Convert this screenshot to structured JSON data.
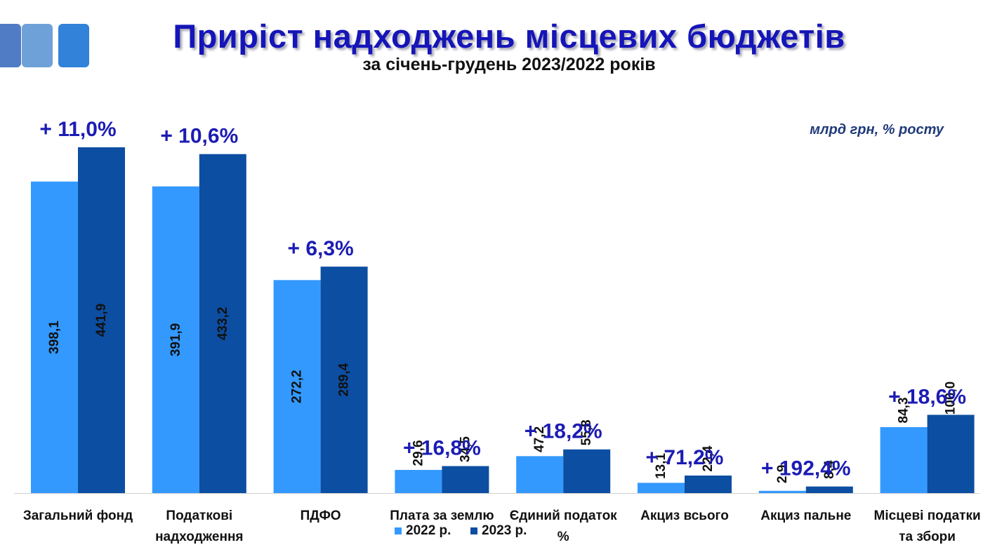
{
  "header": {
    "title": "Приріст надходжень місцевих бюджетів",
    "subtitle": "за січень-грудень 2023/2022 років",
    "unit": "млрд грн, % росту"
  },
  "colors": {
    "series_2022": "#3399ff",
    "series_2023": "#0c4ea2",
    "growth": "#1c1cb4"
  },
  "chart_data": {
    "type": "bar",
    "categories": [
      [
        "Загальний фонд"
      ],
      [
        "Податкові",
        "надходження"
      ],
      [
        "ПДФО"
      ],
      [
        "Плата за землю"
      ],
      [
        "Єдиний податок",
        "%"
      ],
      [
        "Акциз всього"
      ],
      [
        "Акциз пальне"
      ],
      [
        "Місцеві податки",
        "та збори"
      ]
    ],
    "series": [
      {
        "name": "2022 р.",
        "values": [
          398.1,
          391.9,
          272.2,
          29.6,
          47.2,
          13.1,
          2.9,
          84.3
        ],
        "labels": [
          "398,1",
          "391,9",
          "272,2",
          "29,6",
          "47,2",
          "13,1",
          "2,9",
          "84,3"
        ]
      },
      {
        "name": "2023 р.",
        "values": [
          441.9,
          433.2,
          289.4,
          34.5,
          55.8,
          22.4,
          8.4,
          100.0
        ],
        "labels": [
          "441,9",
          "433,2",
          "289,4",
          "34,5",
          "55,8",
          "22,4",
          "8,4",
          "100,0"
        ]
      }
    ],
    "growth_labels": [
      "+ 11,0%",
      "+ 10,6%",
      "+ 6,3%",
      "+ 16,8%",
      "+ 18,2%",
      "+ 71,2%",
      "+ 192,4%",
      "+ 18,6%"
    ],
    "ylim": [
      0,
      441.9
    ],
    "grid": false,
    "legend": "bottom-center"
  }
}
